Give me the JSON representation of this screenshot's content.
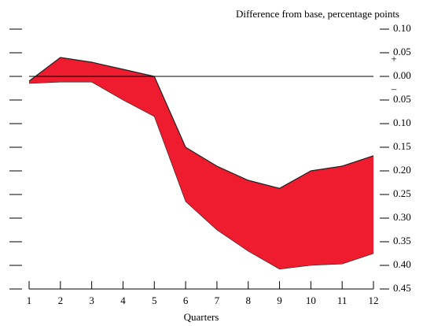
{
  "chart_data": {
    "type": "band",
    "title": "Difference from base, percentage points",
    "x_label": "Quarters",
    "sign_labels": [
      "+",
      "–"
    ],
    "x": [
      1,
      2,
      3,
      4,
      5,
      6,
      7,
      8,
      9,
      10,
      11,
      12
    ],
    "xlim": [
      1,
      12
    ],
    "xticks": [
      1,
      2,
      3,
      4,
      5,
      6,
      7,
      8,
      9,
      10,
      11,
      12
    ],
    "ylim": [
      -0.45,
      0.1
    ],
    "yticks": [
      {
        "value": 0.1,
        "label": "0.10"
      },
      {
        "value": 0.05,
        "label": "0.05"
      },
      {
        "value": 0,
        "label": "0.00"
      },
      {
        "value": -0.05,
        "label": "0.05"
      },
      {
        "value": -0.1,
        "label": "0.10"
      },
      {
        "value": -0.15,
        "label": "0.15"
      },
      {
        "value": -0.2,
        "label": "0.20"
      },
      {
        "value": -0.25,
        "label": "0.25"
      },
      {
        "value": -0.3,
        "label": "0.30"
      },
      {
        "value": -0.35,
        "label": "0.35"
      },
      {
        "value": -0.4,
        "label": "0.40"
      },
      {
        "value": -0.45,
        "label": "0.45"
      }
    ],
    "color": "#ee1c2e",
    "series": [
      {
        "values": [
          -0.01,
          0.04,
          0.03,
          0.015,
          0.0,
          -0.15,
          -0.19,
          -0.22,
          -0.237,
          -0.2,
          -0.19,
          -0.168
        ]
      },
      {
        "values": [
          -0.015,
          -0.012,
          -0.012,
          -0.05,
          -0.085,
          -0.265,
          -0.325,
          -0.37,
          -0.408,
          -0.4,
          -0.397,
          -0.375
        ]
      }
    ]
  }
}
